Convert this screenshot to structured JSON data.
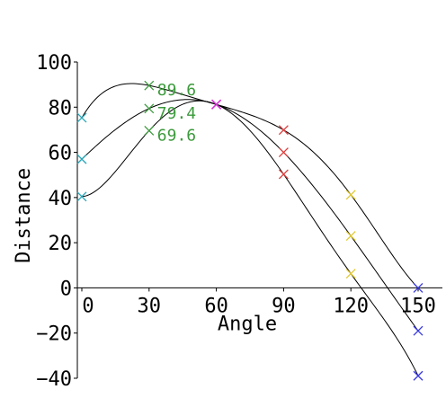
{
  "chart_data": {
    "type": "line",
    "xlabel": "Angle",
    "ylabel": "Distance",
    "xlim": [
      -2,
      152
    ],
    "ylim": [
      -40,
      100
    ],
    "x_ticks": [
      0,
      30,
      60,
      90,
      120,
      150
    ],
    "y_ticks": [
      -40,
      -20,
      0,
      20,
      40,
      60,
      80,
      100
    ],
    "grid": false,
    "series": [
      {
        "points": [
          [
            0,
            75.3
          ],
          [
            30,
            89.6
          ],
          [
            60,
            81.2
          ],
          [
            90,
            69.9
          ],
          [
            120,
            41.2
          ],
          [
            150,
            0
          ]
        ],
        "marker_colors": [
          "#29a6b8",
          "#3c9a3c",
          "#d633d6",
          "#e03c3c",
          "#e0c82e",
          "#3a3ae0"
        ]
      },
      {
        "points": [
          [
            0,
            57.0
          ],
          [
            30,
            79.4
          ],
          [
            60,
            81.2
          ],
          [
            90,
            60.0
          ],
          [
            120,
            23.0
          ],
          [
            150,
            -19.0
          ]
        ],
        "marker_colors": [
          "#29a6b8",
          "#3c9a3c",
          "#d633d6",
          "#e03c3c",
          "#e0c82e",
          "#3a3ae0"
        ]
      },
      {
        "points": [
          [
            0,
            40.4
          ],
          [
            30,
            69.6
          ],
          [
            60,
            81.2
          ],
          [
            90,
            50.3
          ],
          [
            120,
            6.3
          ],
          [
            150,
            -38.9
          ]
        ],
        "marker_colors": [
          "#29a6b8",
          "#3c9a3c",
          "#d633d6",
          "#e03c3c",
          "#e0c82e",
          "#3a3ae0"
        ]
      }
    ],
    "annotations": [
      {
        "text": "89.6",
        "x": 30,
        "y": 89.6,
        "color": "#3c9a3c"
      },
      {
        "text": "79.4",
        "x": 30,
        "y": 79.4,
        "color": "#3c9a3c"
      },
      {
        "text": "69.6",
        "x": 30,
        "y": 69.6,
        "color": "#3c9a3c"
      }
    ],
    "colors": {
      "axis": "#000000",
      "curve": "#000000",
      "text": "#000000"
    }
  }
}
